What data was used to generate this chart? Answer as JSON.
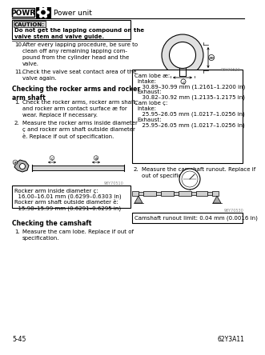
{
  "header_text": "POWR",
  "header_subtitle": "Power unit",
  "page_ref": "5-45",
  "page_code": "62Y3A11",
  "caution_title": "CAUTION:",
  "caution_body": "Do not get the lapping compound on the\nvalve stem and valve guide.",
  "item10_num": "10.",
  "item10_body": "After every lapping procedure, be sure to\nclean off any remaining lapping com-\npound from the cylinder head and the\nvalve.",
  "item11_num": "11.",
  "item11_body": "Check the valve seat contact area of the\nvalve again.",
  "section_title": "Checking the rocker arms and rocker\narm shaft",
  "step1_num": "1.",
  "step1_body": "Check the rocker arms, rocker arm shaft,\nand rocker arm contact surface æ for\nwear. Replace if necessary.",
  "step2_num": "2.",
  "step2_body": "Measure the rocker arms inside diameter\nç and rocker arm shaft outside diameter\nè. Replace if out of specification.",
  "cam_lobe_a_title": "Cam lobe æ:",
  "cam_lobe_a_intake": "Intake:",
  "cam_lobe_a_intake_val": "  30.89–30.99 mm (1.2161–1.2200 in)",
  "cam_lobe_a_exhaust": "Exhaust:",
  "cam_lobe_a_exhaust_val": "  30.82–30.92 mm (1.2135–1.2175 in)",
  "cam_lobe_b_title": "Cam lobe ç:",
  "cam_lobe_b_intake": "Intake:",
  "cam_lobe_b_intake_val": "  25.95–26.05 mm (1.0217–1.0256 in)",
  "cam_lobe_b_exhaust": "Exhaust:",
  "cam_lobe_b_exhaust_val": "  25.95–26.05 mm (1.0217–1.0256 in)",
  "step2_cam_num": "2.",
  "step2_cam_body": "Measure the camshaft runout. Replace if\nout of specification.",
  "rocker_box_line1": "Rocker arm inside diameter ç:",
  "rocker_box_line2": "  16.00–16.01 mm (0.6299–0.6303 in)",
  "rocker_box_line3": "Rocker arm shaft outside diameter è:",
  "rocker_box_line4": "  15.98–15.99 mm (0.6291–0.6295 in)",
  "camshaft_box": "Camshaft runout limit: 0.04 mm (0.0016 in)",
  "section2_title": "Checking the camshaft",
  "section2_step1_num": "1.",
  "section2_step1_body": "Measure the cam lobe. Replace if out of\nspecification.",
  "ref1": "98Y70520",
  "ref2": "98Y70510",
  "ref3": "98Y70530"
}
